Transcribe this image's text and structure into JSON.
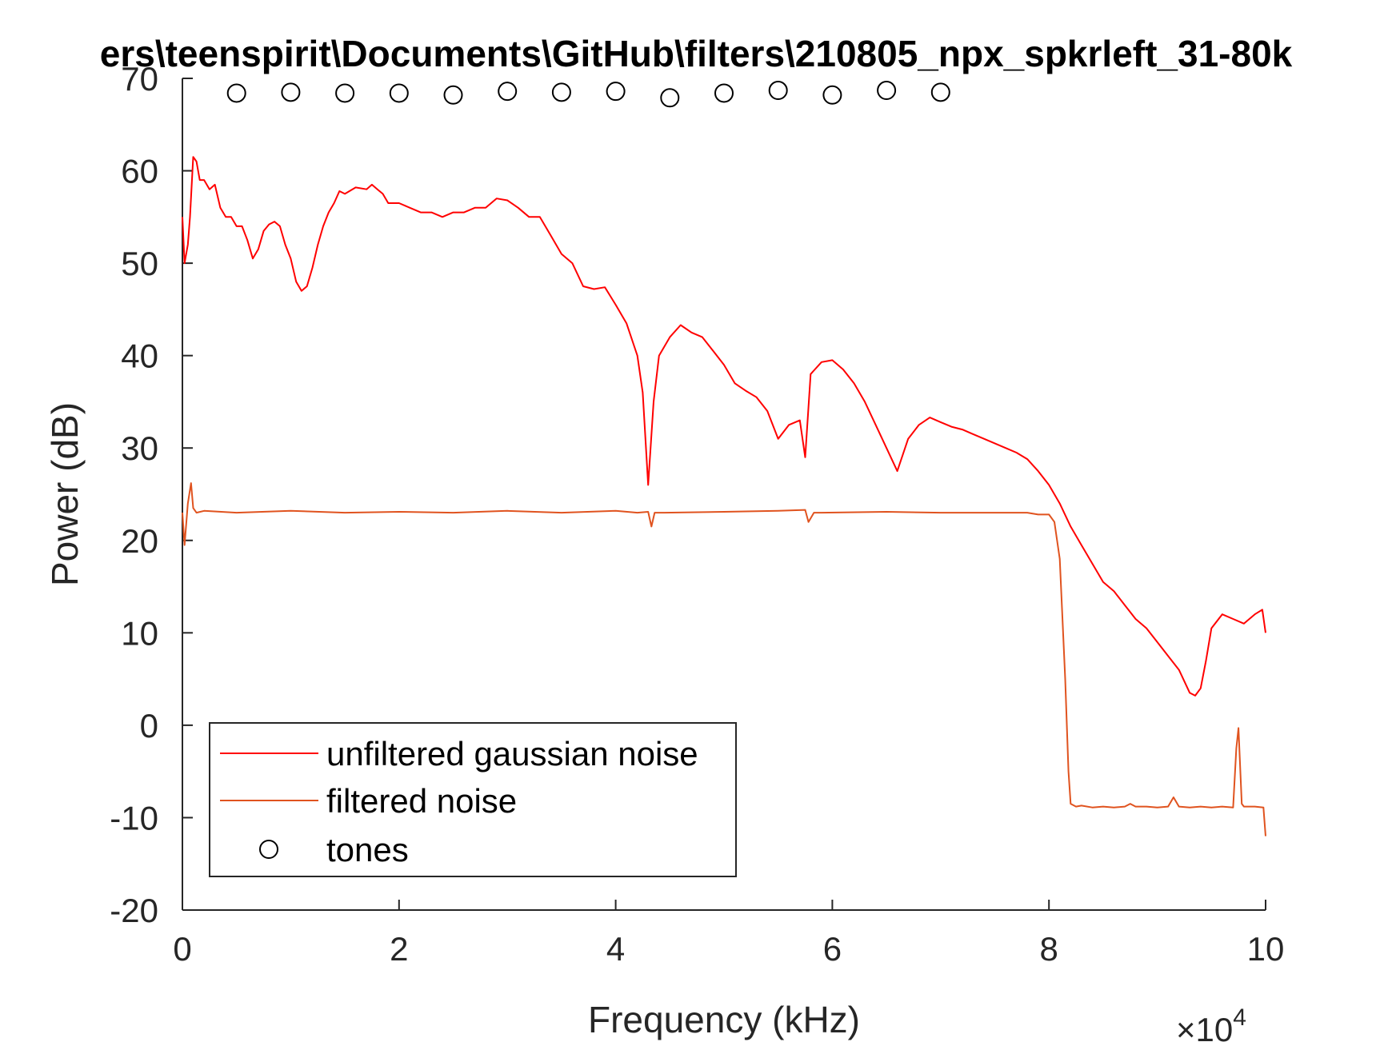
{
  "chart_data": {
    "type": "line",
    "title": "ers\\teenspirit\\Documents\\GitHub\\filters\\210805_npx_spkrleft_31-80k",
    "xlabel": "Frequency (kHz)",
    "ylabel": "Power (dB)",
    "x_exponent_label": "×10",
    "x_exponent_power": "4",
    "xlim": [
      0,
      100000
    ],
    "ylim": [
      -20,
      70
    ],
    "xticks": [
      0,
      20000,
      40000,
      60000,
      80000,
      100000
    ],
    "xtick_labels": [
      "0",
      "2",
      "4",
      "6",
      "8",
      "10"
    ],
    "yticks": [
      -20,
      -10,
      0,
      10,
      20,
      30,
      40,
      50,
      60,
      70
    ],
    "ytick_labels": [
      "-20",
      "-10",
      "0",
      "10",
      "20",
      "30",
      "40",
      "50",
      "60",
      "70"
    ],
    "grid": false,
    "legend_position": "bottom-left",
    "series": [
      {
        "name": "unfiltered gaussian noise",
        "color": "#ff0000",
        "style": "line",
        "x": [
          0,
          200,
          500,
          700,
          1000,
          1300,
          1600,
          2000,
          2500,
          3000,
          3500,
          4000,
          4500,
          5000,
          5500,
          6000,
          6500,
          7000,
          7500,
          8000,
          8500,
          9000,
          9500,
          10000,
          10500,
          11000,
          11500,
          12000,
          12500,
          13000,
          13500,
          14000,
          14500,
          15000,
          16000,
          17000,
          17500,
          18000,
          18500,
          19000,
          20000,
          21000,
          22000,
          23000,
          24000,
          25000,
          26000,
          27000,
          28000,
          29000,
          30000,
          31000,
          32000,
          33000,
          34000,
          35000,
          36000,
          37000,
          38000,
          39000,
          40000,
          41000,
          42000,
          42500,
          43000,
          43500,
          44000,
          45000,
          46000,
          47000,
          48000,
          49000,
          50000,
          51000,
          52000,
          53000,
          54000,
          55000,
          56000,
          57000,
          57500,
          58000,
          59000,
          60000,
          61000,
          62000,
          63000,
          64000,
          65000,
          66000,
          67000,
          68000,
          69000,
          70000,
          71000,
          72000,
          73000,
          74000,
          75000,
          76000,
          77000,
          78000,
          79000,
          80000,
          81000,
          82000,
          83000,
          84000,
          85000,
          86000,
          87000,
          88000,
          89000,
          90000,
          91000,
          92000,
          93000,
          93500,
          94000,
          94500,
          95000,
          96000,
          97000,
          98000,
          99000,
          99700,
          100000
        ],
        "y": [
          55,
          50,
          52,
          55,
          61.5,
          61,
          59,
          59,
          58,
          58.5,
          56,
          55,
          55,
          54,
          54,
          52.5,
          50.5,
          51.5,
          53.5,
          54.2,
          54.5,
          54,
          52,
          50.5,
          48,
          47,
          47.5,
          49.5,
          52,
          54,
          55.5,
          56.5,
          57.8,
          57.5,
          58.2,
          58,
          58.5,
          58,
          57.5,
          56.5,
          56.5,
          56,
          55.5,
          55.5,
          55,
          55.5,
          55.5,
          56,
          56,
          57,
          56.8,
          56,
          55,
          55,
          53,
          51,
          50,
          47.5,
          47.2,
          47.4,
          45.5,
          43.5,
          40,
          36,
          26,
          35,
          40,
          42,
          43.3,
          42.5,
          42,
          40.5,
          39,
          37,
          36.2,
          35.5,
          34,
          31,
          32.5,
          33,
          29,
          38,
          39.3,
          39.5,
          38.5,
          37,
          35,
          32.5,
          30,
          27.5,
          31,
          32.5,
          33.3,
          32.8,
          32.3,
          32,
          31.5,
          31,
          30.5,
          30,
          29.5,
          28.8,
          27.5,
          26,
          24,
          21.5,
          19.5,
          17.5,
          15.5,
          14.5,
          13,
          11.5,
          10.5,
          9,
          7.5,
          6,
          3.5,
          3.2,
          4,
          7,
          10.5,
          12,
          11.5,
          11,
          12,
          12.5,
          10
        ]
      },
      {
        "name": "filtered noise",
        "color": "#e0531f",
        "style": "line",
        "x": [
          0,
          200,
          500,
          800,
          1000,
          1300,
          2000,
          5000,
          10000,
          15000,
          20000,
          25000,
          30000,
          35000,
          40000,
          42000,
          43000,
          43300,
          43600,
          44500,
          50000,
          55000,
          57500,
          57800,
          58300,
          59000,
          65000,
          70000,
          75000,
          78000,
          79000,
          80000,
          80500,
          81000,
          81500,
          81800,
          82000,
          82500,
          83000,
          84000,
          85000,
          86000,
          87000,
          87500,
          88000,
          89000,
          90000,
          91000,
          91500,
          92000,
          93000,
          94000,
          95000,
          96000,
          97000,
          97300,
          97500,
          97800,
          98000,
          99000,
          99800,
          100000
        ],
        "y": [
          23,
          19.5,
          24,
          26.2,
          23.5,
          23,
          23.2,
          23,
          23.2,
          23,
          23.1,
          23,
          23.2,
          23,
          23.2,
          23,
          23.1,
          21.5,
          23,
          23,
          23.1,
          23.2,
          23.3,
          22,
          23,
          23,
          23.1,
          23,
          23,
          23,
          22.8,
          22.8,
          22,
          18,
          5,
          -5,
          -8.5,
          -8.8,
          -8.7,
          -8.9,
          -8.8,
          -8.9,
          -8.8,
          -8.5,
          -8.8,
          -8.8,
          -8.9,
          -8.8,
          -7.8,
          -8.8,
          -8.9,
          -8.8,
          -8.9,
          -8.8,
          -8.9,
          -2.5,
          -0.3,
          -8.5,
          -8.8,
          -8.8,
          -8.9,
          -12
        ]
      },
      {
        "name": "tones",
        "color": "#000000",
        "style": "marker-circle",
        "x": [
          5000,
          10000,
          15000,
          20000,
          25000,
          30000,
          35000,
          40000,
          45000,
          50000,
          55000,
          60000,
          65000,
          70000
        ],
        "y": [
          68.4,
          68.5,
          68.4,
          68.4,
          68.2,
          68.6,
          68.5,
          68.6,
          67.9,
          68.4,
          68.7,
          68.2,
          68.7,
          68.5
        ]
      }
    ]
  }
}
